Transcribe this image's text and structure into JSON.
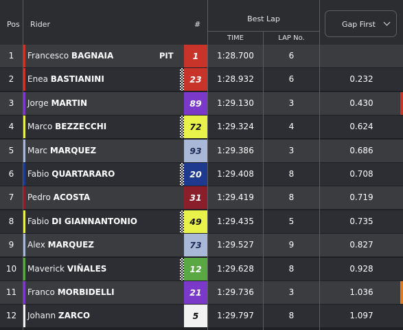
{
  "header": {
    "pos": "Pos",
    "rider": "Rider",
    "number": "#",
    "best_lap": "Best Lap",
    "time": "TIME",
    "lap_no": "LAP No.",
    "gap_select": "Gap First"
  },
  "riders": [
    {
      "pos": "1",
      "first": "Francesco",
      "last": "BAGNAIA",
      "pit": "PIT",
      "number": "1",
      "time": "1:28.700",
      "lap": "6",
      "gap": "",
      "team_color": "#c8342a",
      "num_bg": "#c8342a",
      "num_fg": "#ffffff",
      "checker": false
    },
    {
      "pos": "2",
      "first": "Enea",
      "last": "BASTIANINI",
      "pit": "",
      "number": "23",
      "time": "1:28.932",
      "lap": "6",
      "gap": "0.232",
      "team_color": "#c8342a",
      "num_bg": "#c8342a",
      "num_fg": "#ffffff",
      "checker": true
    },
    {
      "pos": "3",
      "first": "Jorge",
      "last": "MARTIN",
      "pit": "",
      "number": "89",
      "time": "1:29.130",
      "lap": "3",
      "gap": "0.430",
      "team_color": "#7b39c9",
      "num_bg": "#7b39c9",
      "num_fg": "#ffffff",
      "checker": false
    },
    {
      "pos": "4",
      "first": "Marco",
      "last": "BEZZECCHI",
      "pit": "",
      "number": "72",
      "time": "1:29.324",
      "lap": "4",
      "gap": "0.624",
      "team_color": "#e8f24a",
      "num_bg": "#e8f24a",
      "num_fg": "#111111",
      "checker": true
    },
    {
      "pos": "5",
      "first": "Marc",
      "last": "MARQUEZ",
      "pit": "",
      "number": "93",
      "time": "1:29.386",
      "lap": "3",
      "gap": "0.686",
      "team_color": "#a9b8d6",
      "num_bg": "#a9b8d6",
      "num_fg": "#1c2a57",
      "checker": false
    },
    {
      "pos": "6",
      "first": "Fabio",
      "last": "QUARTARARO",
      "pit": "",
      "number": "20",
      "time": "1:29.408",
      "lap": "8",
      "gap": "0.708",
      "team_color": "#1d3a8f",
      "num_bg": "#1d3a8f",
      "num_fg": "#ffffff",
      "checker": true
    },
    {
      "pos": "7",
      "first": "Pedro",
      "last": "ACOSTA",
      "pit": "",
      "number": "31",
      "time": "1:29.419",
      "lap": "8",
      "gap": "0.719",
      "team_color": "#8a1f2b",
      "num_bg": "#8a1f2b",
      "num_fg": "#ffffff",
      "checker": false
    },
    {
      "pos": "8",
      "first": "Fabio",
      "last": "DI GIANNANTONIO",
      "pit": "",
      "number": "49",
      "time": "1:29.435",
      "lap": "5",
      "gap": "0.735",
      "team_color": "#e8f24a",
      "num_bg": "#e8f24a",
      "num_fg": "#111111",
      "checker": true
    },
    {
      "pos": "9",
      "first": "Alex",
      "last": "MARQUEZ",
      "pit": "",
      "number": "73",
      "time": "1:29.527",
      "lap": "9",
      "gap": "0.827",
      "team_color": "#a9b8d6",
      "num_bg": "#a9b8d6",
      "num_fg": "#1c2a57",
      "checker": false
    },
    {
      "pos": "10",
      "first": "Maverick",
      "last": "VIÑALES",
      "pit": "",
      "number": "12",
      "time": "1:29.628",
      "lap": "8",
      "gap": "0.928",
      "team_color": "#5aa843",
      "num_bg": "#5aa843",
      "num_fg": "#ffffff",
      "checker": true
    },
    {
      "pos": "11",
      "first": "Franco",
      "last": "MORBIDELLI",
      "pit": "",
      "number": "21",
      "time": "1:29.736",
      "lap": "3",
      "gap": "1.036",
      "team_color": "#7b39c9",
      "num_bg": "#7b39c9",
      "num_fg": "#ffffff",
      "checker": false
    },
    {
      "pos": "12",
      "first": "Johann",
      "last": "ZARCO",
      "pit": "",
      "number": "5",
      "time": "1:29.797",
      "lap": "8",
      "gap": "1.097",
      "team_color": "#f2f2f2",
      "num_bg": "#f2f2f2",
      "num_fg": "#111111",
      "checker": false
    }
  ],
  "edge_marks": [
    {
      "row": 2,
      "color": "#c8342a"
    },
    {
      "row": 10,
      "color": "#e07a1f"
    }
  ]
}
